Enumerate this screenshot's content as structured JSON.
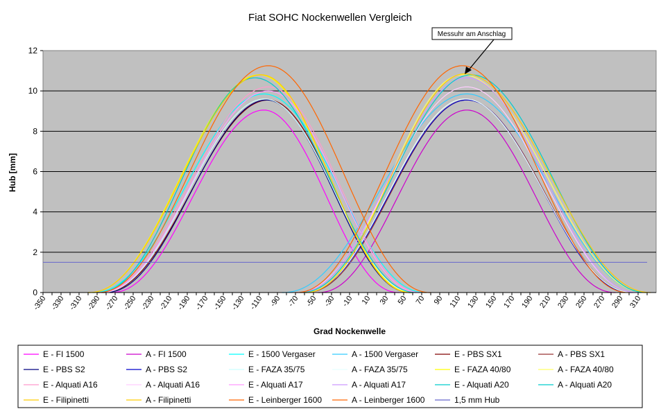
{
  "chart_data": {
    "type": "line",
    "title": "Fiat SOHC Nockenwellen Vergleich",
    "xlabel": "Grad Nockenwelle",
    "ylabel": "Hub [mm]",
    "xlim": [
      -350,
      330
    ],
    "ylim": [
      0,
      12
    ],
    "yticks": [
      0,
      2,
      4,
      6,
      8,
      10,
      12
    ],
    "xticks": [
      -350,
      -340,
      -330,
      -320,
      -310,
      -300,
      -290,
      -280,
      -270,
      -260,
      -250,
      -240,
      -230,
      -220,
      -210,
      -200,
      -190,
      -180,
      -170,
      -160,
      -150,
      -140,
      -130,
      -120,
      -110,
      -100,
      -90,
      -80,
      -70,
      -60,
      -50,
      -40,
      -30,
      -20,
      -10,
      0,
      10,
      20,
      30,
      40,
      50,
      60,
      70,
      80,
      90,
      100,
      110,
      120,
      130,
      140,
      150,
      160,
      170,
      180,
      190,
      200,
      210,
      220,
      230,
      240,
      250,
      260,
      270,
      280,
      290,
      300,
      310,
      320
    ],
    "xtick_labels": [
      -350,
      -330,
      -310,
      -290,
      -270,
      -250,
      -230,
      -210,
      -190,
      -170,
      -150,
      -130,
      -110,
      -90,
      -70,
      -50,
      -30,
      -10,
      10,
      30,
      50,
      70,
      90,
      110,
      130,
      150,
      170,
      190,
      210,
      230,
      250,
      270,
      290,
      310
    ],
    "grid": "horizontal",
    "plot_background": "#c0c0c0",
    "annotation": {
      "text": "Messuhr am Anschlag",
      "points_to": {
        "x": 115,
        "y": 10.8
      }
    },
    "series": [
      {
        "name": "E - FI 1500",
        "kind": "E",
        "color": "#ff00ff",
        "peak": 9.05,
        "center": -105,
        "start": -275,
        "end": 45
      },
      {
        "name": "A - FI 1500",
        "kind": "A",
        "color": "#cc00cc",
        "peak": 9.05,
        "center": 120,
        "start": -45,
        "end": 285
      },
      {
        "name": "E - 1500 Vergaser",
        "kind": "E",
        "color": "#00ffff",
        "peak": 9.85,
        "center": -105,
        "start": -295,
        "end": 75
      },
      {
        "name": "A - 1500 Vergaser",
        "kind": "A",
        "color": "#33ccff",
        "peak": 9.85,
        "center": 120,
        "start": -85,
        "end": 320
      },
      {
        "name": "E - PBS SX1",
        "kind": "E",
        "color": "#800000",
        "peak": 9.55,
        "center": -100,
        "start": -285,
        "end": 60
      },
      {
        "name": "A - PBS SX1",
        "kind": "A",
        "color": "#993333",
        "peak": 9.55,
        "center": 120,
        "start": -60,
        "end": 305
      },
      {
        "name": "E - PBS S2",
        "kind": "E",
        "color": "#000080",
        "peak": 9.55,
        "center": -102,
        "start": -282,
        "end": 58
      },
      {
        "name": "A - PBS S2",
        "kind": "A",
        "color": "#0000cc",
        "peak": 9.55,
        "center": 120,
        "start": -62,
        "end": 303
      },
      {
        "name": "E - FAZA 35/75",
        "kind": "E",
        "color": "#ccffff",
        "peak": 9.6,
        "center": -104,
        "start": -286,
        "end": 62
      },
      {
        "name": "A - FAZA 35/75",
        "kind": "A",
        "color": "#e6ffff",
        "peak": 9.6,
        "center": 118,
        "start": -62,
        "end": 305
      },
      {
        "name": "E - FAZA 40/80",
        "kind": "E",
        "color": "#ffff00",
        "peak": 10.8,
        "center": -110,
        "start": -300,
        "end": 60
      },
      {
        "name": "A - FAZA 40/80",
        "kind": "A",
        "color": "#ffff66",
        "peak": 10.8,
        "center": 115,
        "start": -60,
        "end": 320
      },
      {
        "name": "E - Alquati A16",
        "kind": "E",
        "color": "#ff99cc",
        "peak": 10.2,
        "center": -100,
        "start": -290,
        "end": 70
      },
      {
        "name": "A - Alquati A16",
        "kind": "A",
        "color": "#ffccff",
        "peak": 10.2,
        "center": 120,
        "start": -70,
        "end": 310
      },
      {
        "name": "E - Alquati A17",
        "kind": "E",
        "color": "#ff99ff",
        "peak": 10.0,
        "center": -100,
        "start": -288,
        "end": 68
      },
      {
        "name": "A - Alquati A17",
        "kind": "A",
        "color": "#cc99ff",
        "peak": 10.65,
        "center": 120,
        "start": -68,
        "end": 310
      },
      {
        "name": "E - Alquati A20",
        "kind": "E",
        "color": "#00cccc",
        "peak": 10.65,
        "center": -115,
        "start": -290,
        "end": 65
      },
      {
        "name": "A - Alquati A20",
        "kind": "A",
        "color": "#00cccc",
        "peak": 10.8,
        "center": 125,
        "start": -65,
        "end": 320
      },
      {
        "name": "E - Filipinetti",
        "kind": "E",
        "color": "#ffcc00",
        "peak": 10.8,
        "center": -108,
        "start": -300,
        "end": 58
      },
      {
        "name": "A - Filipinetti",
        "kind": "A",
        "color": "#ffcc00",
        "peak": 10.85,
        "center": 118,
        "start": -60,
        "end": 325
      },
      {
        "name": "E - Leinberger 1600",
        "kind": "E",
        "color": "#ff6600",
        "peak": 11.25,
        "center": -100,
        "start": -290,
        "end": 80
      },
      {
        "name": "A - Leinberger 1600",
        "kind": "A",
        "color": "#ff6600",
        "peak": 11.25,
        "center": 115,
        "start": -70,
        "end": 300
      },
      {
        "name": "1,5 mm Hub",
        "kind": "H",
        "color": "#6666cc",
        "value": 1.5,
        "start": -350,
        "end": 320
      }
    ]
  }
}
